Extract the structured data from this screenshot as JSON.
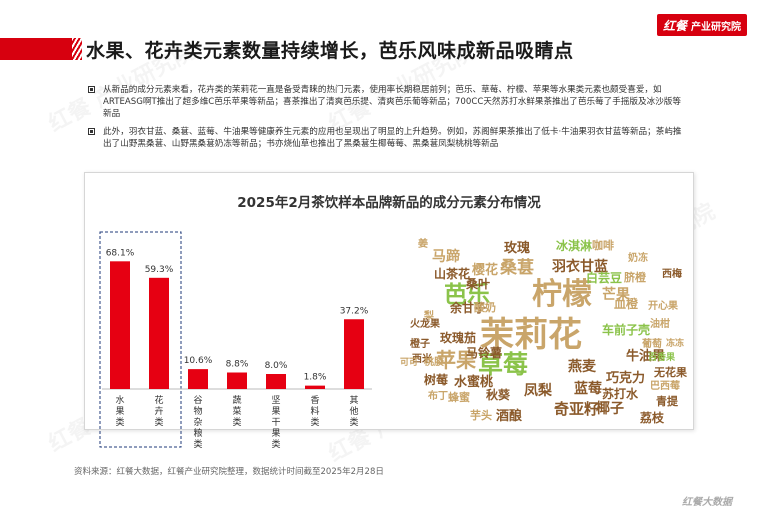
{
  "header": {
    "title": "水果、花卉类元素数量持续增长，芭乐风味成新品吸睛点",
    "logo_brand": "红餐",
    "logo_sub": "产业研究院"
  },
  "bullets": [
    "从新品的成分元素来看，花卉类的茉莉花一直是备受青睐的热门元素，使用率长期稳居前列；芭乐、草莓、柠檬、苹果等水果类元素也颇受喜爱，如ARTEASG啊T推出了超多维C芭乐苹果等新品；喜茶推出了清爽芭乐提、清爽芭乐葡等新品；700CC天然苏打水鲜果茶推出了芭乐莓了手摇版及冰沙版等新品",
    "此外，羽衣甘蓝、桑葚、蓝莓、牛油果等健康养生元素的应用也呈现出了明显的上升趋势。例如，苏阁鲜果茶推出了低卡·牛油果羽衣甘蓝等新品；茶屿推出了山野黑桑葚、山野黑桑葚奶冻等新品；书亦烧仙草也推出了黑桑葚生椰莓莓、黑桑葚凤梨桃桃等新品"
  ],
  "chart_data": {
    "type": "bar",
    "title": "2025年2月茶饮样本品牌新品的成分元素分布情况",
    "categories": [
      "水果类",
      "花卉类",
      "谷物杂粮类",
      "蔬菜类",
      "坚果干果类",
      "香料类",
      "其他类"
    ],
    "values": [
      68.1,
      59.3,
      10.6,
      8.8,
      8.0,
      1.8,
      37.2
    ],
    "value_labels": [
      "68.1%",
      "59.3%",
      "10.6%",
      "8.8%",
      "8.0%",
      "1.8%",
      "37.2%"
    ],
    "bar_color": "#e60012",
    "highlight": [
      "水果类",
      "花卉类"
    ],
    "ylim": [
      0,
      80
    ]
  },
  "wordcloud": [
    {
      "text": "茉莉花",
      "color": "#c9a56a"
    },
    {
      "text": "柠檬",
      "color": "#c9a56a"
    },
    {
      "text": "芭乐",
      "color": "#8bc34a"
    },
    {
      "text": "草莓",
      "color": "#8bc34a"
    },
    {
      "text": "苹果",
      "color": "#c9a56a"
    },
    {
      "text": "桑葚",
      "color": "#c9a56a"
    },
    {
      "text": "羽衣甘蓝",
      "color": "#8b5a2b"
    },
    {
      "text": "玫瑰",
      "color": "#8b5a2b"
    },
    {
      "text": "冰淇淋",
      "color": "#8bc34a"
    },
    {
      "text": "咖啡",
      "color": "#c9a56a"
    },
    {
      "text": "马蹄",
      "color": "#c9a56a"
    },
    {
      "text": "姜",
      "color": "#c9a56a"
    },
    {
      "text": "樱花",
      "color": "#c9a56a"
    },
    {
      "text": "白芸豆",
      "color": "#8bc34a"
    },
    {
      "text": "奶冻",
      "color": "#c9a56a"
    },
    {
      "text": "桑叶",
      "color": "#8b5a2b"
    },
    {
      "text": "山茶花",
      "color": "#8b5a2b"
    },
    {
      "text": "脐橙",
      "color": "#c9a56a"
    },
    {
      "text": "西梅",
      "color": "#8b5a2b"
    },
    {
      "text": "余甘子",
      "color": "#8b5a2b"
    },
    {
      "text": "芒果",
      "color": "#c9a56a"
    },
    {
      "text": "血橙",
      "color": "#c9a56a"
    },
    {
      "text": "开心果",
      "color": "#c9a56a"
    },
    {
      "text": "梨",
      "color": "#c9a56a"
    },
    {
      "text": "橙子",
      "color": "#8b5a2b"
    },
    {
      "text": "火龙果",
      "color": "#8b5a2b"
    },
    {
      "text": "酸奶",
      "color": "#c9a56a"
    },
    {
      "text": "车前子壳",
      "color": "#8bc34a"
    },
    {
      "text": "油柑",
      "color": "#c9a56a"
    },
    {
      "text": "西米",
      "color": "#8b5a2b"
    },
    {
      "text": "玫瑰茄",
      "color": "#8b5a2b"
    },
    {
      "text": "葡萄",
      "color": "#c9a56a"
    },
    {
      "text": "冻冻",
      "color": "#c9a56a"
    },
    {
      "text": "牛油果",
      "color": "#8b5a2b"
    },
    {
      "text": "百香果",
      "color": "#8bc34a"
    },
    {
      "text": "可可",
      "color": "#c9a56a"
    },
    {
      "text": "桃胶",
      "color": "#c9a56a"
    },
    {
      "text": "马铃薯",
      "color": "#8b5a2b"
    },
    {
      "text": "无花果",
      "color": "#8b5a2b"
    },
    {
      "text": "燕麦",
      "color": "#8b5a2b"
    },
    {
      "text": "巧克力",
      "color": "#8b5a2b"
    },
    {
      "text": "巴西莓",
      "color": "#c9a56a"
    },
    {
      "text": "树莓",
      "color": "#8b5a2b"
    },
    {
      "text": "水蜜桃",
      "color": "#8b5a2b"
    },
    {
      "text": "布丁",
      "color": "#c9a56a"
    },
    {
      "text": "蜂蜜",
      "color": "#c9a56a"
    },
    {
      "text": "秋葵",
      "color": "#8b5a2b"
    },
    {
      "text": "凤梨",
      "color": "#8b5a2b"
    },
    {
      "text": "苏打水",
      "color": "#8b5a2b"
    },
    {
      "text": "青提",
      "color": "#8b5a2b"
    },
    {
      "text": "蓝莓",
      "color": "#8b5a2b"
    },
    {
      "text": "芋头",
      "color": "#c9a56a"
    },
    {
      "text": "酒酿",
      "color": "#8b5a2b"
    },
    {
      "text": "奇亚籽",
      "color": "#8b5a2b"
    },
    {
      "text": "椰子",
      "color": "#8b5a2b"
    },
    {
      "text": "荔枝",
      "color": "#8b5a2b"
    }
  ],
  "source": "资料来源：红餐大数据，红餐产业研究院整理，数据统计时间截至2025年2月28日",
  "footer_logo": "红餐大数据"
}
